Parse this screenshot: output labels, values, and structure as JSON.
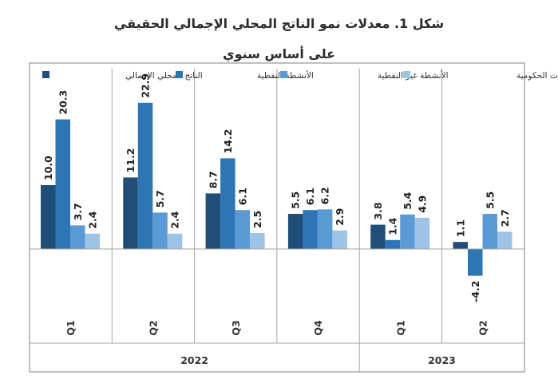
{
  "chart_data": {
    "type": "bar",
    "title": "شكل 1. معدلات نمو الناتج المحلي الإجمالي الحقيقي",
    "subtitle": "على أساس سنوي",
    "legend_position": "top",
    "series": [
      {
        "name": "الناتج المحلي الإجمالي",
        "color": "#1f4e79",
        "values": [
          10.0,
          11.2,
          8.7,
          5.5,
          3.8,
          1.1
        ]
      },
      {
        "name": "الأنشطة النفطية",
        "color": "#2e75b6",
        "values": [
          20.3,
          22.9,
          14.2,
          6.1,
          1.4,
          -4.2
        ]
      },
      {
        "name": "الأنشطة غير النفطية",
        "color": "#5b9bd5",
        "values": [
          3.7,
          5.7,
          6.1,
          6.2,
          5.4,
          5.5
        ]
      },
      {
        "name": "أنشطة الخدمات الحكومية",
        "color": "#9dc3e6",
        "values": [
          2.4,
          2.4,
          2.5,
          2.9,
          4.9,
          2.7
        ]
      }
    ],
    "value_labels": [
      [
        "10.0",
        "20.3",
        "3.7",
        "2.4"
      ],
      [
        "11.2",
        "22.9",
        "5.7",
        "2.4"
      ],
      [
        "8.7",
        "14.2",
        "6.1",
        "2.5"
      ],
      [
        "5.5",
        "6.1",
        "6.2",
        "2.9"
      ],
      [
        "3.8",
        "1.4",
        "5.4",
        "4.9"
      ],
      [
        "1.1",
        "-4.2",
        "5.5",
        "2.7"
      ]
    ],
    "categories": [
      "Q1",
      "Q2",
      "Q3",
      "Q4",
      "Q1",
      "Q2"
    ],
    "years": [
      {
        "label": "2022",
        "quarters": 4
      },
      {
        "label": "2023",
        "quarters": 2
      }
    ],
    "ylim": [
      -10.5,
      29.2
    ],
    "grid": false
  }
}
